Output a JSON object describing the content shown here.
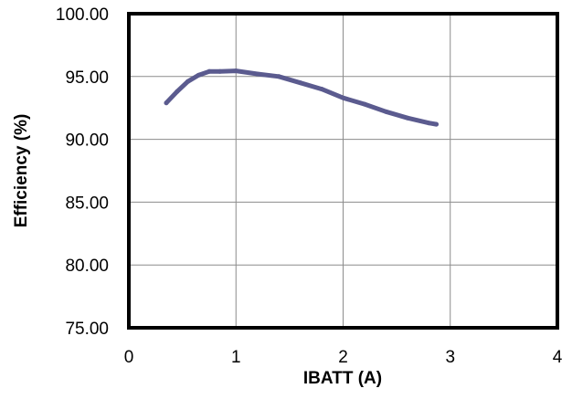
{
  "chart_data": {
    "type": "line",
    "title": "",
    "xlabel": "IBATT  (A)",
    "ylabel": "Efficiency (%)",
    "xlim": [
      0,
      4
    ],
    "ylim": [
      75,
      100
    ],
    "x_ticks": [
      "0",
      "1",
      "2",
      "3",
      "4"
    ],
    "y_ticks": [
      "75.00",
      "80.00",
      "85.00",
      "90.00",
      "95.00",
      "100.00"
    ],
    "grid": true,
    "legend": "none",
    "series": [
      {
        "color": "#5b5b8f",
        "x": [
          0.35,
          0.45,
          0.55,
          0.65,
          0.75,
          0.85,
          1.0,
          1.2,
          1.4,
          1.6,
          1.8,
          2.0,
          2.2,
          2.4,
          2.6,
          2.8,
          2.87
        ],
        "y": [
          92.9,
          93.8,
          94.6,
          95.1,
          95.4,
          95.4,
          95.45,
          95.2,
          95.0,
          94.5,
          94.0,
          93.3,
          92.8,
          92.2,
          91.7,
          91.3,
          91.2
        ]
      }
    ]
  }
}
